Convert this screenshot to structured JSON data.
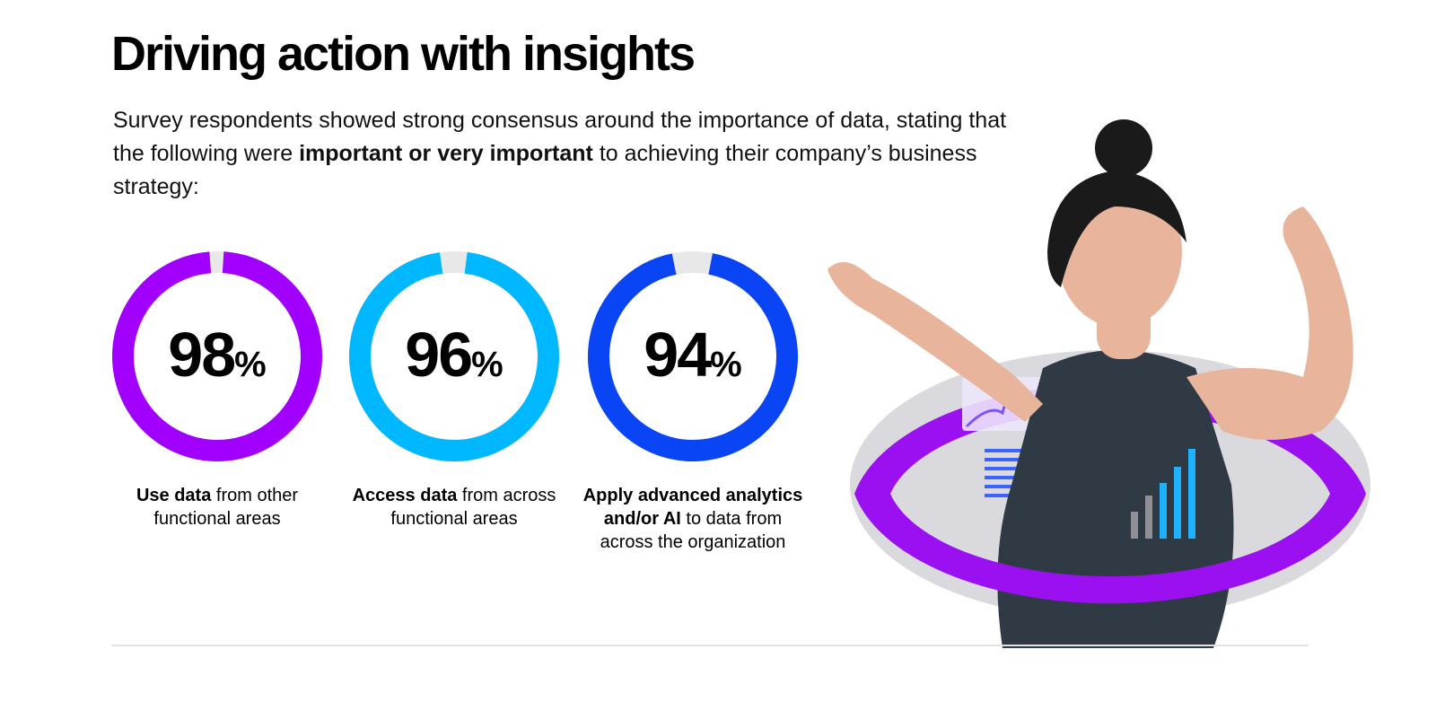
{
  "header": {
    "title": "Driving action with insights",
    "intro_before": "Survey respondents showed strong consensus around the importance of data, stating that the following were ",
    "intro_bold": "important or very important",
    "intro_after": " to achieving their company’s business strategy:"
  },
  "chart_data": {
    "type": "pie",
    "unit": "%",
    "stats": [
      {
        "value": 98,
        "remainder": 2,
        "color": "#a100ff",
        "caption_bold": "Use data",
        "caption_rest": " from other functional areas"
      },
      {
        "value": 96,
        "remainder": 4,
        "color": "#00b8ff",
        "caption_bold": "Access data",
        "caption_rest": " from across functional areas"
      },
      {
        "value": 94,
        "remainder": 6,
        "color": "#0a45f5",
        "caption_bold": "Apply advanced analytics and/or AI",
        "caption_rest": " to data from across the organization"
      }
    ],
    "remainder_color": "#e8e8e8"
  },
  "illustration": {
    "ring_color": "#9a10f0",
    "skin_color": "#e8b49c",
    "tank_top_color": "#2f3a45",
    "hair_color": "#1a1a1a"
  }
}
